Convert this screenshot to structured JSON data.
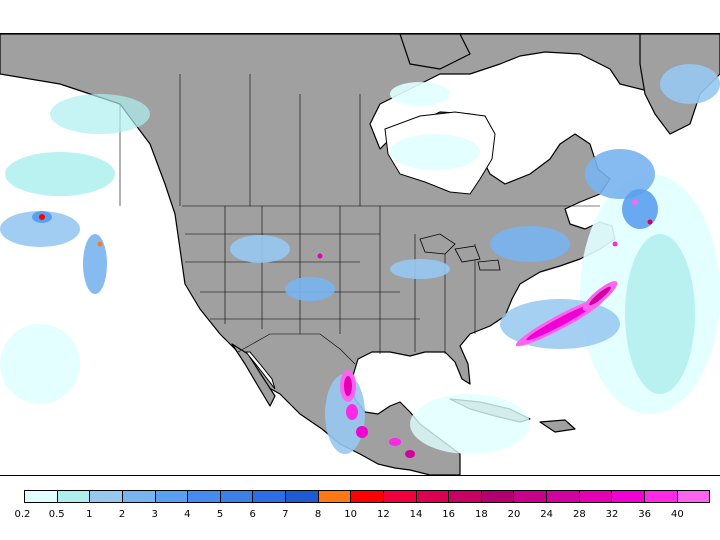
{
  "legend": {
    "bins": [
      {
        "label": "0.2",
        "color": "#e0ffff"
      },
      {
        "label": "0.5",
        "color": "#aeeeee"
      },
      {
        "label": "1",
        "color": "#96c8f0"
      },
      {
        "label": "2",
        "color": "#78b4f0"
      },
      {
        "label": "3",
        "color": "#5aa0f0"
      },
      {
        "label": "4",
        "color": "#468cf0"
      },
      {
        "label": "5",
        "color": "#3c82e6"
      },
      {
        "label": "6",
        "color": "#2d6ee6"
      },
      {
        "label": "7",
        "color": "#1e5ad2"
      },
      {
        "label": "8",
        "color": "#ff7814"
      },
      {
        "label": "10",
        "color": "#ff0000"
      },
      {
        "label": "12",
        "color": "#f0003c"
      },
      {
        "label": "14",
        "color": "#dc0050"
      },
      {
        "label": "16",
        "color": "#c80064"
      },
      {
        "label": "18",
        "color": "#b4006e"
      },
      {
        "label": "20",
        "color": "#c8008c"
      },
      {
        "label": "24",
        "color": "#d200a0"
      },
      {
        "label": "28",
        "color": "#e600b4"
      },
      {
        "label": "32",
        "color": "#f000d2"
      },
      {
        "label": "36",
        "color": "#ff28e6"
      },
      {
        "label": "40",
        "color": "#ff64f0"
      }
    ]
  },
  "colors": {
    "land": "#a0a0a0",
    "ocean": "#ffffff",
    "border": "#000000"
  }
}
